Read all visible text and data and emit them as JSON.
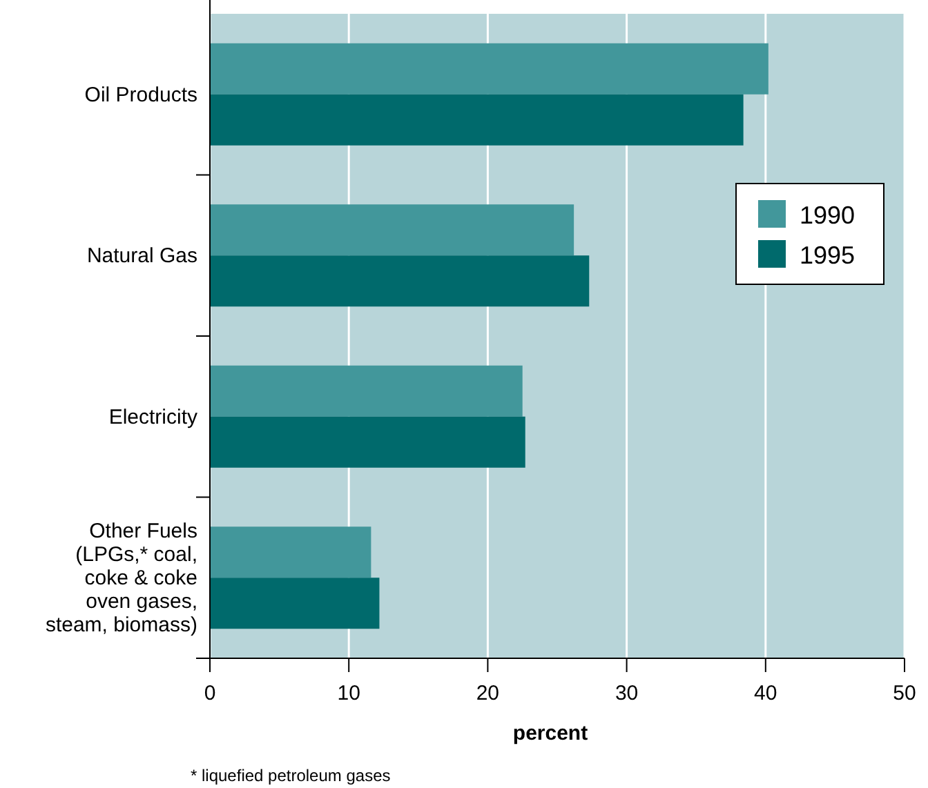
{
  "chart_data": {
    "type": "bar",
    "orientation": "horizontal",
    "xlabel": "percent",
    "categories": [
      "Oil Products",
      "Natural Gas",
      "Electricity",
      "Other Fuels\n(LPGs,* coal,\ncoke & coke\noven gases,\nsteam, biomass)"
    ],
    "series": [
      {
        "name": "1990",
        "color": "#42979b",
        "values": [
          40.2,
          26.2,
          22.5,
          11.6
        ]
      },
      {
        "name": "1995",
        "color": "#006a6c",
        "values": [
          38.4,
          27.3,
          22.7,
          12.2
        ]
      }
    ],
    "xlim": [
      0,
      50
    ],
    "xticks": [
      0,
      10,
      20,
      30,
      40,
      50
    ],
    "grid": "x",
    "legend": "top right",
    "annotations": [
      "* liquefied petroleum gases"
    ]
  }
}
